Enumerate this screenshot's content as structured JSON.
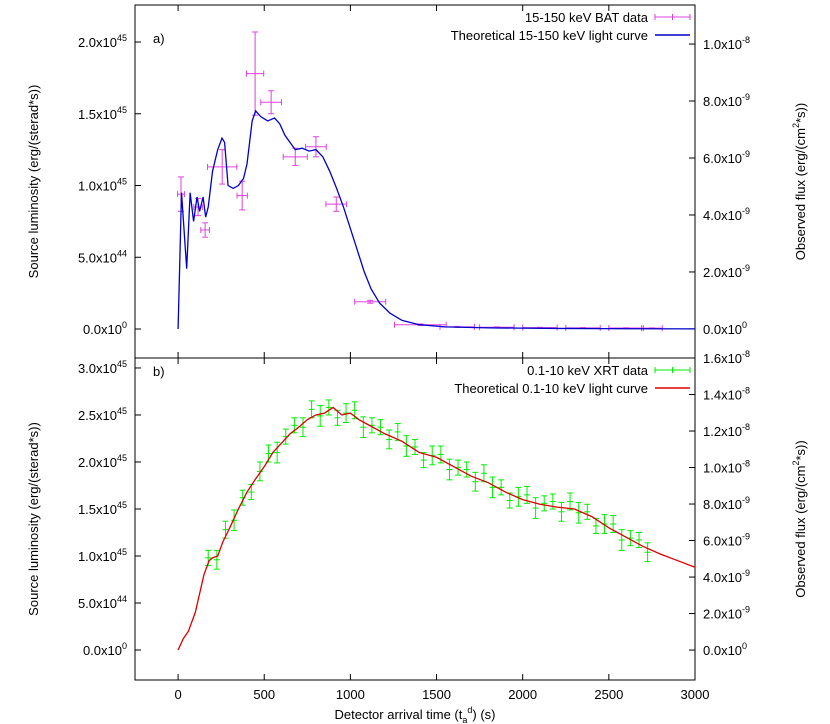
{
  "chart_data": [
    {
      "type": "line",
      "panel_label": "a)",
      "ylabel": "Source luminosity (erg/(sterad*s))",
      "y2label": "Observed flux (erg/(cm^2*s))",
      "xlim": [
        -250,
        3000
      ],
      "xticks": [
        0,
        500,
        1000,
        1500,
        2000,
        2500,
        3000
      ],
      "xtick_labels": false,
      "ylim": [
        -2.02e+44,
        2.258e+45
      ],
      "yticks": [
        {
          "value": 0,
          "label": "0.0x10^0"
        },
        {
          "value": 5e+44,
          "label": "5.0x10^44"
        },
        {
          "value": 1e+45,
          "label": "1.0x10^45"
        },
        {
          "value": 1.5e+45,
          "label": "1.5x10^45"
        },
        {
          "value": 2e+45,
          "label": "2.0x10^45"
        }
      ],
      "y2lim": [
        -1.02e-09,
        1.137e-08
      ],
      "y2ticks": [
        {
          "value": 0,
          "label": "0.0x10^0"
        },
        {
          "value": 2e-09,
          "label": "2.0x10^-9"
        },
        {
          "value": 4e-09,
          "label": "4.0x10^-9"
        },
        {
          "value": 6e-09,
          "label": "6.0x10^-9"
        },
        {
          "value": 8e-09,
          "label": "8.0x10^-9"
        },
        {
          "value": 1e-08,
          "label": "1.0x10^-8"
        }
      ],
      "legend": "upper right",
      "series": [
        {
          "name": "15-150 keV BAT data",
          "type": "errorbar",
          "color": "#e040e0",
          "x": [
            17,
            116,
            157,
            256,
            372,
            447,
            540,
            680,
            800,
            918,
            1115,
            1406,
            1620,
            1850,
            2100,
            2350,
            2600,
            2750
          ],
          "xerr": [
            20,
            25,
            25,
            85,
            30,
            50,
            60,
            70,
            60,
            60,
            90,
            150,
            100,
            100,
            100,
            100,
            100,
            60
          ],
          "values": [
            9.4e+44,
            8.5e+44,
            6.9e+44,
            1.13e+45,
            9.3e+44,
            1.78e+45,
            1.58e+45,
            1.2e+45,
            1.27e+45,
            8.7e+44,
            1.9e+44,
            3e+43,
            1.5e+43,
            1.2e+43,
            1e+43,
            8e+42,
            7e+42,
            6e+42
          ],
          "yerr": [
            1.2e+44,
            6e+43,
            5e+43,
            1.2e+44,
            1e+44,
            2.9e+44,
            8e+43,
            6e+43,
            7e+43,
            5e+43,
            1e+43,
            5e+42,
            3e+42,
            3e+42,
            2e+42,
            2e+42,
            2e+42,
            2e+42
          ]
        },
        {
          "name": "Theoretical 15-150 keV light curve",
          "type": "line",
          "color": "#0000cc",
          "x": [
            0,
            20,
            50,
            70,
            90,
            110,
            125,
            145,
            160,
            175,
            200,
            230,
            255,
            270,
            290,
            320,
            350,
            380,
            400,
            430,
            450,
            480,
            520,
            560,
            590,
            620,
            650,
            680,
            720,
            760,
            800,
            840,
            880,
            920,
            960,
            1000,
            1040,
            1080,
            1120,
            1170,
            1230,
            1300,
            1400,
            1550,
            1800,
            2200,
            2600,
            3000
          ],
          "values": [
            0,
            9.5e+44,
            4.2e+44,
            9.5e+44,
            7.5e+44,
            9.2e+44,
            8.2e+44,
            9.2e+44,
            7.8e+44,
            8.5e+44,
            1.1e+45,
            1.25e+45,
            1.33e+45,
            1.3e+45,
            1e+45,
            9.8e+44,
            1e+45,
            1.05e+45,
            1.15e+45,
            1.45e+45,
            1.52e+45,
            1.48e+45,
            1.45e+45,
            1.47e+45,
            1.43e+45,
            1.35e+45,
            1.3e+45,
            1.25e+45,
            1.26e+45,
            1.24e+45,
            1.25e+45,
            1.2e+45,
            1.1e+45,
            9.8e+44,
            8.5e+44,
            7e+44,
            5.5e+44,
            4e+44,
            2.8e+44,
            1.8e+44,
            1.1e+44,
            6e+43,
            3e+43,
            1.5e+43,
            8e+42,
            4e+42,
            2e+42,
            1e+42
          ]
        }
      ]
    },
    {
      "type": "line",
      "panel_label": "b)",
      "ylabel": "Source luminosity (erg/(sterad*s))",
      "y2label": "Observed flux (erg/(cm^2*s))",
      "xlabel": "Detector arrival time (t_a^d) (s)",
      "xlim": [
        -250,
        3000
      ],
      "xticks": [
        0,
        500,
        1000,
        1500,
        2000,
        2500,
        3000
      ],
      "xtick_labels": true,
      "ylim": [
        -3.19e+44,
        3.106e+45
      ],
      "yticks": [
        {
          "value": 0,
          "label": "0.0x10^0"
        },
        {
          "value": 5e+44,
          "label": "5.0x10^44"
        },
        {
          "value": 1e+45,
          "label": "1.0x10^45"
        },
        {
          "value": 1.5e+45,
          "label": "1.5x10^45"
        },
        {
          "value": 2e+45,
          "label": "2.0x10^45"
        },
        {
          "value": 2.5e+45,
          "label": "2.5x10^45"
        },
        {
          "value": 3e+45,
          "label": "3.0x10^45"
        }
      ],
      "y2lim": [
        -1.64e-09,
        1.6e-08
      ],
      "y2ticks": [
        {
          "value": 0,
          "label": "0.0x10^0"
        },
        {
          "value": 2e-09,
          "label": "2.0x10^-9"
        },
        {
          "value": 4e-09,
          "label": "4.0x10^-9"
        },
        {
          "value": 6e-09,
          "label": "6.0x10^-9"
        },
        {
          "value": 8e-09,
          "label": "8.0x10^-9"
        },
        {
          "value": 1e-08,
          "label": "1.0x10^-8"
        },
        {
          "value": 1.2e-08,
          "label": "1.2x10^-8"
        },
        {
          "value": 1.4e-08,
          "label": "1.4x10^-8"
        },
        {
          "value": 1.6e-08,
          "label": "1.6x10^-8"
        }
      ],
      "legend": "upper right",
      "series": [
        {
          "name": "0.1-10 keV XRT data",
          "type": "errorbar",
          "color": "#00ee00",
          "x": [
            175,
            225,
            275,
            325,
            375,
            425,
            475,
            525,
            575,
            625,
            675,
            725,
            775,
            825,
            875,
            925,
            975,
            1025,
            1075,
            1125,
            1175,
            1225,
            1275,
            1325,
            1375,
            1425,
            1475,
            1525,
            1575,
            1625,
            1675,
            1725,
            1775,
            1825,
            1875,
            1925,
            1975,
            2025,
            2075,
            2125,
            2175,
            2225,
            2275,
            2325,
            2375,
            2425,
            2475,
            2525,
            2575,
            2625,
            2675,
            2725
          ],
          "values": [
            9.8e+44,
            9.6e+44,
            1.28e+45,
            1.38e+45,
            1.62e+45,
            1.68e+45,
            1.9e+45,
            2.09e+45,
            2.1e+45,
            2.27e+45,
            2.39e+45,
            2.37e+45,
            2.56e+45,
            2.49e+45,
            2.58e+45,
            2.47e+45,
            2.52e+45,
            2.55e+45,
            2.37e+45,
            2.39e+45,
            2.37e+45,
            2.24e+45,
            2.32e+45,
            2.17e+45,
            2.16e+45,
            2.02e+45,
            2.07e+45,
            2.08e+45,
            1.92e+45,
            1.94e+45,
            1.92e+45,
            1.79e+45,
            1.88e+45,
            1.73e+45,
            1.73e+45,
            1.59e+45,
            1.63e+45,
            1.65e+45,
            1.51e+45,
            1.56e+45,
            1.58e+45,
            1.47e+45,
            1.58e+45,
            1.46e+45,
            1.47e+45,
            1.32e+45,
            1.34e+45,
            1.34e+45,
            1.17e+45,
            1.19e+45,
            1.17e+45,
            1.04e+45
          ],
          "yerr": [
            8e+43,
            1e+44,
            9e+43,
            1.1e+44,
            8e+43,
            8e+43,
            1e+44,
            9e+43,
            1.1e+44,
            8e+43,
            8e+43,
            1e+44,
            9e+43,
            1.1e+44,
            8e+43,
            8e+43,
            1e+44,
            9e+43,
            1.1e+44,
            8e+43,
            8e+43,
            1e+44,
            9e+43,
            1.1e+44,
            8e+43,
            8e+43,
            1e+44,
            9e+43,
            1.1e+44,
            8e+43,
            8e+43,
            1e+44,
            9e+43,
            1.1e+44,
            8e+43,
            8e+43,
            1e+44,
            9e+43,
            1.1e+44,
            8e+43,
            8e+43,
            1e+44,
            9e+43,
            1.1e+44,
            8e+43,
            8e+43,
            1e+44,
            9e+43,
            1.1e+44,
            8e+43,
            8e+43,
            1e+44
          ]
        },
        {
          "name": "Theoretical 0.1-10 keV light curve",
          "type": "line",
          "color": "#dd0000",
          "x": [
            0,
            30,
            60,
            100,
            150,
            180,
            200,
            230,
            260,
            300,
            350,
            400,
            450,
            500,
            550,
            600,
            650,
            700,
            750,
            800,
            850,
            900,
            950,
            1000,
            1050,
            1100,
            1150,
            1200,
            1300,
            1400,
            1500,
            1600,
            1700,
            1800,
            1900,
            2000,
            2100,
            2200,
            2300,
            2400,
            2500,
            2600,
            2700,
            2800,
            2900,
            3000
          ],
          "values": [
            0,
            1.2e+44,
            2e+44,
            4e+44,
            8e+44,
            9.5e+44,
            9.8e+44,
            1e+45,
            1.15e+45,
            1.3e+45,
            1.5e+45,
            1.68e+45,
            1.82e+45,
            1.95e+45,
            2.1e+45,
            2.2e+45,
            2.3e+45,
            2.37e+45,
            2.45e+45,
            2.5e+45,
            2.52e+45,
            2.58e+45,
            2.5e+45,
            2.52e+45,
            2.45e+45,
            2.4e+45,
            2.35e+45,
            2.3e+45,
            2.22e+45,
            2.1e+45,
            2.05e+45,
            1.95e+45,
            1.85e+45,
            1.78e+45,
            1.68e+45,
            1.6e+45,
            1.55e+45,
            1.52e+45,
            1.5e+45,
            1.42e+45,
            1.3e+45,
            1.2e+45,
            1.1e+45,
            1.02e+45,
            9.5e+44,
            8.8e+44
          ]
        }
      ]
    }
  ]
}
